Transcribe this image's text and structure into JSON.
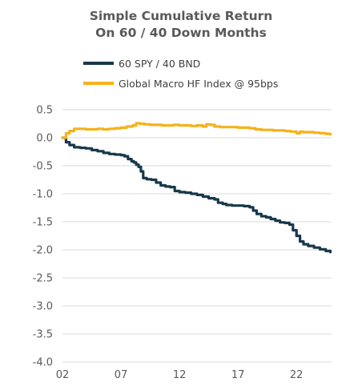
{
  "chart_data": {
    "type": "line",
    "title": "Simple Cumulative Return",
    "subtitle": "On 60 / 40 Down Months",
    "xlabel": "",
    "ylabel": "",
    "xlim": [
      2,
      25
    ],
    "ylim": [
      -4.0,
      0.5
    ],
    "x_ticks": [
      "02",
      "07",
      "12",
      "17",
      "22"
    ],
    "y_ticks": [
      "0.5",
      "0.0",
      "-0.5",
      "-1.0",
      "-1.5",
      "-2.0",
      "-2.5",
      "-3.0",
      "-3.5",
      "-4.0"
    ],
    "grid": "horizontal",
    "legend": "top-left",
    "series": [
      {
        "name": "60 SPY / 40 BND",
        "color": "#17394a",
        "points": [
          [
            2.0,
            0.0
          ],
          [
            2.3,
            -0.08
          ],
          [
            2.6,
            -0.13
          ],
          [
            3.0,
            -0.17
          ],
          [
            3.5,
            -0.18
          ],
          [
            4.0,
            -0.19
          ],
          [
            4.5,
            -0.22
          ],
          [
            5.0,
            -0.24
          ],
          [
            5.5,
            -0.27
          ],
          [
            6.0,
            -0.29
          ],
          [
            6.5,
            -0.3
          ],
          [
            7.0,
            -0.31
          ],
          [
            7.3,
            -0.33
          ],
          [
            7.6,
            -0.38
          ],
          [
            7.9,
            -0.42
          ],
          [
            8.1,
            -0.44
          ],
          [
            8.3,
            -0.48
          ],
          [
            8.5,
            -0.52
          ],
          [
            8.7,
            -0.6
          ],
          [
            8.9,
            -0.72
          ],
          [
            9.2,
            -0.74
          ],
          [
            9.6,
            -0.75
          ],
          [
            10.0,
            -0.8
          ],
          [
            10.4,
            -0.85
          ],
          [
            10.8,
            -0.87
          ],
          [
            11.2,
            -0.88
          ],
          [
            11.6,
            -0.95
          ],
          [
            12.0,
            -0.97
          ],
          [
            12.5,
            -0.98
          ],
          [
            13.0,
            -1.0
          ],
          [
            13.5,
            -1.02
          ],
          [
            14.0,
            -1.05
          ],
          [
            14.5,
            -1.08
          ],
          [
            15.0,
            -1.1
          ],
          [
            15.3,
            -1.16
          ],
          [
            15.7,
            -1.18
          ],
          [
            16.0,
            -1.2
          ],
          [
            16.5,
            -1.21
          ],
          [
            17.0,
            -1.21
          ],
          [
            17.5,
            -1.22
          ],
          [
            18.0,
            -1.24
          ],
          [
            18.3,
            -1.3
          ],
          [
            18.6,
            -1.36
          ],
          [
            19.0,
            -1.4
          ],
          [
            19.4,
            -1.42
          ],
          [
            19.8,
            -1.45
          ],
          [
            20.2,
            -1.48
          ],
          [
            20.6,
            -1.51
          ],
          [
            21.0,
            -1.52
          ],
          [
            21.4,
            -1.55
          ],
          [
            21.7,
            -1.65
          ],
          [
            22.0,
            -1.75
          ],
          [
            22.3,
            -1.85
          ],
          [
            22.6,
            -1.9
          ],
          [
            23.0,
            -1.93
          ],
          [
            23.5,
            -1.96
          ],
          [
            24.0,
            -1.99
          ],
          [
            24.5,
            -2.02
          ],
          [
            24.9,
            -2.04
          ]
        ]
      },
      {
        "name": "Global Macro HF Index @ 95bps",
        "color": "#f5b21b",
        "points": [
          [
            2.0,
            0.0
          ],
          [
            2.3,
            0.08
          ],
          [
            2.6,
            0.12
          ],
          [
            3.0,
            0.16
          ],
          [
            3.5,
            0.16
          ],
          [
            4.0,
            0.15
          ],
          [
            4.5,
            0.15
          ],
          [
            5.0,
            0.16
          ],
          [
            5.5,
            0.15
          ],
          [
            6.0,
            0.16
          ],
          [
            6.5,
            0.17
          ],
          [
            7.0,
            0.18
          ],
          [
            7.5,
            0.2
          ],
          [
            8.0,
            0.22
          ],
          [
            8.3,
            0.26
          ],
          [
            8.6,
            0.25
          ],
          [
            9.0,
            0.24
          ],
          [
            9.5,
            0.23
          ],
          [
            10.0,
            0.23
          ],
          [
            10.5,
            0.22
          ],
          [
            11.0,
            0.22
          ],
          [
            11.5,
            0.23
          ],
          [
            12.0,
            0.22
          ],
          [
            12.5,
            0.22
          ],
          [
            13.0,
            0.21
          ],
          [
            13.5,
            0.22
          ],
          [
            14.0,
            0.2
          ],
          [
            14.3,
            0.24
          ],
          [
            14.6,
            0.23
          ],
          [
            15.0,
            0.2
          ],
          [
            15.5,
            0.19
          ],
          [
            16.0,
            0.19
          ],
          [
            16.5,
            0.19
          ],
          [
            17.0,
            0.18
          ],
          [
            17.5,
            0.18
          ],
          [
            18.0,
            0.17
          ],
          [
            18.5,
            0.15
          ],
          [
            19.0,
            0.14
          ],
          [
            19.5,
            0.14
          ],
          [
            20.0,
            0.13
          ],
          [
            20.5,
            0.13
          ],
          [
            21.0,
            0.12
          ],
          [
            21.5,
            0.11
          ],
          [
            22.0,
            0.08
          ],
          [
            22.3,
            0.11
          ],
          [
            22.6,
            0.1
          ],
          [
            23.0,
            0.1
          ],
          [
            23.5,
            0.09
          ],
          [
            24.0,
            0.08
          ],
          [
            24.5,
            0.07
          ],
          [
            24.9,
            0.06
          ]
        ]
      }
    ]
  }
}
